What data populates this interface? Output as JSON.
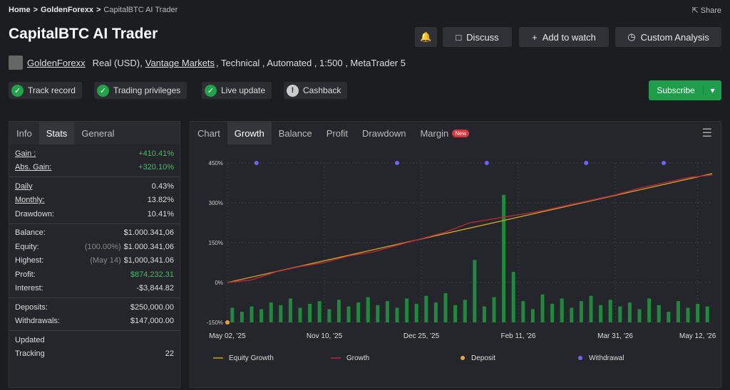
{
  "breadcrumb": [
    "Home",
    "GoldenForexx",
    "CapitalBTC AI Trader"
  ],
  "breadcrumb_separator": ">",
  "share": "Share",
  "title": "CapitalBTC AI Trader",
  "buttons": [
    "Discuss",
    "Add to watch",
    "Custom Analysis"
  ],
  "owner": "GoldenForexx",
  "account_info": [
    "Real (USD),",
    "Vantage Markets",
    ", Technical , Automated , 1:500 , MetaTrader 5"
  ],
  "badges": [
    "Track record",
    "Trading privileges",
    "Live update",
    "Cashback"
  ],
  "subscribe": "Subscribe",
  "left_tabs": [
    "Info",
    "Stats",
    "General"
  ],
  "stats": [
    [
      {
        "label": "Gain :",
        "value": "+410.41%",
        "highlight": true,
        "underline": true
      },
      {
        "label": "Abs. Gain:",
        "value": "+320.10%",
        "highlight": true,
        "underline": true
      }
    ],
    [
      {
        "label": "Daily",
        "value": "0.43%",
        "underline": true
      },
      {
        "label": "Monthly:",
        "value": "13.82%",
        "underline": true
      },
      {
        "label": "Drawdown:",
        "value": "10.41%"
      }
    ],
    [
      {
        "label": "Balance:",
        "value": "$1.000.341,06"
      },
      {
        "label": "Equity:",
        "note": "(100.00%)",
        "value": "$1.000.341,06"
      },
      {
        "label": "Highest:",
        "note": "(May 14)",
        "value": "$1,000,341.06"
      },
      {
        "label": "Profit:",
        "value": "$874,232.31",
        "highlight": true
      },
      {
        "label": "Interest:",
        "value": "-$3,844.82"
      }
    ],
    [
      {
        "label": "Deposits:",
        "value": "$250,000.00"
      },
      {
        "label": "Withdrawals:",
        "value": "$147,000.00"
      }
    ],
    [
      {
        "label": "Updated"
      },
      {
        "label": "Tracking",
        "value": "22"
      }
    ]
  ],
  "chart_tabs": [
    "Chart",
    "Growth",
    "Balance",
    "Profit",
    "Drawdown",
    "Margin"
  ],
  "new_badge": "New",
  "chart_data": {
    "type": "line",
    "xlim": [
      0,
      100
    ],
    "xticks": [
      {
        "value": 0,
        "label": "May 02, '25"
      },
      {
        "value": 20,
        "label": "Nov 10, '25"
      },
      {
        "value": 40,
        "label": "Dec 25, '25"
      },
      {
        "value": 60,
        "label": "Feb 11, '26"
      },
      {
        "value": 80,
        "label": "Mar 31, '26"
      },
      {
        "value": 97,
        "label": "May 12, '26"
      }
    ],
    "ylim": [
      -150,
      450
    ],
    "yticks": [
      {
        "value": -150,
        "label": "-150%"
      },
      {
        "value": 0,
        "label": "0%"
      },
      {
        "value": 150,
        "label": "150%"
      },
      {
        "value": 300,
        "label": "300%"
      },
      {
        "value": 450,
        "label": "450%"
      }
    ],
    "grid": true,
    "bars": {
      "color": "#1f8a3c",
      "x": [
        1,
        3,
        5,
        7,
        9,
        11,
        13,
        15,
        17,
        19,
        21,
        23,
        25,
        27,
        29,
        31,
        33,
        35,
        37,
        39,
        41,
        43,
        45,
        47,
        49,
        51,
        53,
        55,
        57,
        59,
        61,
        63,
        65,
        67,
        69,
        71,
        73,
        75,
        77,
        79,
        81,
        83,
        85,
        87,
        89,
        91,
        93,
        95,
        97,
        99
      ],
      "values": [
        -95,
        -110,
        -90,
        -100,
        -75,
        -85,
        -60,
        -95,
        -80,
        -70,
        -100,
        -65,
        -90,
        -75,
        -55,
        -85,
        -70,
        -95,
        -60,
        -80,
        -50,
        -75,
        -40,
        -85,
        -65,
        85,
        -90,
        -55,
        330,
        40,
        -70,
        -100,
        -45,
        -80,
        -60,
        -95,
        -70,
        -50,
        -85,
        -65,
        -90,
        -75,
        -100,
        -60,
        -85,
        -110,
        -70,
        -95,
        -80,
        -90
      ]
    },
    "series": [
      {
        "name": "Equity Growth",
        "mark": "line",
        "color": "#c9a227",
        "x": [
          0,
          100
        ],
        "values": [
          0,
          410
        ]
      },
      {
        "name": "Growth",
        "mark": "line",
        "color": "#b8283a",
        "x": [
          0,
          5,
          10,
          15,
          20,
          25,
          30,
          35,
          40,
          45,
          50,
          55,
          60,
          65,
          70,
          75,
          80,
          85,
          90,
          95,
          100
        ],
        "values": [
          0,
          10,
          40,
          60,
          75,
          100,
          115,
          140,
          165,
          190,
          225,
          240,
          255,
          270,
          290,
          310,
          330,
          355,
          375,
          395,
          405
        ]
      },
      {
        "name": "Deposit",
        "mark": "dot",
        "color": "#e8a530",
        "x": [
          0
        ],
        "values": [
          -150
        ]
      },
      {
        "name": "Withdrawal",
        "mark": "dot",
        "color": "#6c63ff",
        "x": [
          6,
          35,
          53.5,
          74,
          90
        ],
        "values": [
          450,
          450,
          450,
          450,
          450
        ]
      }
    ]
  }
}
